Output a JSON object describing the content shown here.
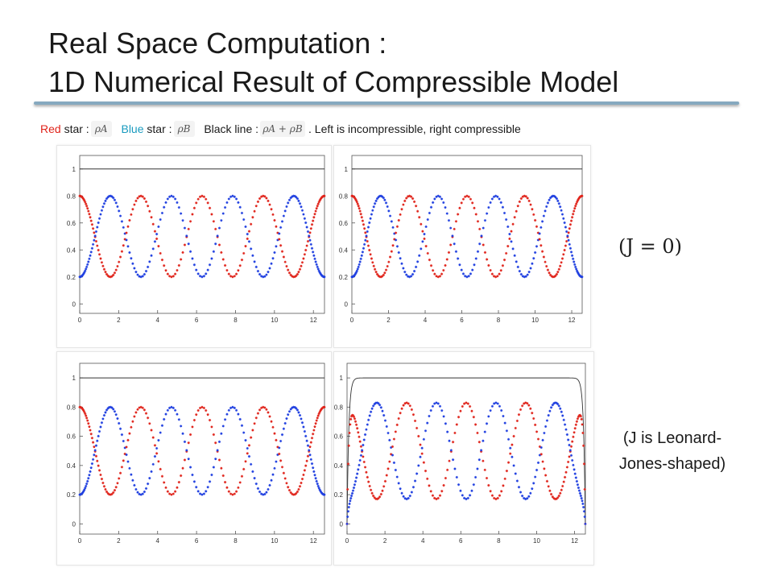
{
  "title": {
    "line1": "Real Space Computation :",
    "line2": "1D Numerical Result of Compressible Model"
  },
  "legend": {
    "red_word": "Red",
    "red_rest": "star :",
    "red_symbol": "ρA",
    "blue_word": "Blue",
    "blue_rest": "star :",
    "blue_symbol": "ρB",
    "black_text": "Black line :",
    "black_symbol": "ρA + ρB",
    "tail": ". Left is incompressible, right compressible"
  },
  "annotations": {
    "j0": "(J = 0)",
    "lj_line1": "(J is Leonard-",
    "lj_line2": "Jones-shaped)"
  },
  "colors": {
    "red": "#e0241b",
    "blue": "#1f3fe0",
    "black": "#333333",
    "rule": "#86a9bf"
  },
  "chart_data": [
    {
      "type": "scatter",
      "xlim": [
        0,
        12.57
      ],
      "ylim": [
        -0.07,
        1.1
      ],
      "xticks": [
        "0",
        "2",
        "4",
        "6",
        "8",
        "10",
        "12"
      ],
      "yticks": [
        "0",
        "0.2",
        "0.4",
        "0.6",
        "0.8",
        "1"
      ],
      "series": [
        {
          "formula": "0.5 + 0.3*cos(2x)",
          "values_hint": {
            "max": 0.8,
            "min": 0.2
          }
        },
        {
          "formula": "0.5 - 0.3*cos(2x)",
          "values_hint": {
            "max": 0.8,
            "min": 0.2
          }
        },
        {
          "formula": "1",
          "values_hint": {
            "max": 1.0,
            "min": 1.0
          }
        }
      ]
    },
    {
      "type": "scatter",
      "xlim": [
        0,
        12.57
      ],
      "ylim": [
        -0.07,
        1.1
      ],
      "xticks": [
        "0",
        "2",
        "4",
        "6",
        "8",
        "10",
        "12"
      ],
      "yticks": [
        "0",
        "0.2",
        "0.4",
        "0.6",
        "0.8",
        "1"
      ],
      "series": [
        {
          "formula": "0.5 + 0.3*cos(2x)",
          "values_hint": {
            "max": 0.8,
            "min": 0.2
          }
        },
        {
          "formula": "0.5 - 0.3*cos(2x)",
          "values_hint": {
            "max": 0.8,
            "min": 0.2
          }
        },
        {
          "formula": "1",
          "values_hint": {
            "max": 1.0,
            "min": 1.0
          }
        }
      ]
    },
    {
      "type": "scatter",
      "xlim": [
        0,
        12.57
      ],
      "ylim": [
        -0.07,
        1.1
      ],
      "xticks": [
        "0",
        "2",
        "4",
        "6",
        "8",
        "10",
        "12"
      ],
      "yticks": [
        "0",
        "0.2",
        "0.4",
        "0.6",
        "0.8",
        "1"
      ],
      "series": [
        {
          "formula": "0.5 + 0.3*cos(2x)",
          "values_hint": {
            "max": 0.8,
            "min": 0.2
          }
        },
        {
          "formula": "0.5 - 0.3*cos(2x)",
          "values_hint": {
            "max": 0.8,
            "min": 0.2
          }
        },
        {
          "formula": "1",
          "values_hint": {
            "max": 1.0,
            "min": 1.0
          }
        }
      ]
    },
    {
      "type": "scatter",
      "xlim": [
        0,
        12.57
      ],
      "ylim": [
        -0.07,
        1.1
      ],
      "xticks": [
        "0",
        "2",
        "4",
        "6",
        "8",
        "10",
        "12"
      ],
      "yticks": [
        "0",
        "0.2",
        "0.4",
        "0.6",
        "0.8",
        "1"
      ],
      "series": [
        {
          "formula": "0.5 + 0.33*cos(2x), dropping to 0 at both walls",
          "values_hint": {
            "max": 0.83,
            "min": 0.0
          }
        },
        {
          "formula": "0.5 - 0.33*cos(2x), dropping to 0 at both walls",
          "values_hint": {
            "max": 0.83,
            "min": 0.0
          }
        },
        {
          "formula": "1, dropping to 0 at both walls",
          "values_hint": {
            "max": 1.0,
            "min": 0.0
          }
        }
      ]
    }
  ]
}
